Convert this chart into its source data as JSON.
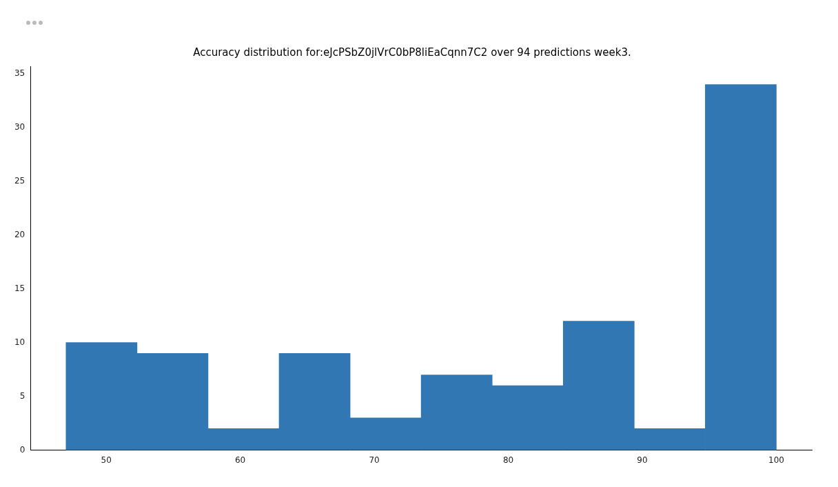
{
  "chart_data": {
    "type": "histogram",
    "title": "Accuracy distribution for:eJcPSbZ0jlVrC0bP8liEaCqnn7C2 over 94 predictions week3.",
    "bins": [
      47,
      52.3,
      57.6,
      62.9,
      68.2,
      73.5,
      78.8,
      84.1,
      89.4,
      94.7,
      100
    ],
    "values": [
      10,
      9,
      2,
      9,
      3,
      7,
      6,
      12,
      2,
      34
    ],
    "color": "#3077b4",
    "xlim": [
      44.35,
      102.65
    ],
    "xticks": [
      50,
      60,
      70,
      80,
      90,
      100
    ],
    "ylim": [
      0,
      35.7
    ],
    "yticks": [
      0,
      5,
      10,
      15,
      20,
      25,
      30,
      35
    ],
    "grid": false,
    "legend": false
  }
}
